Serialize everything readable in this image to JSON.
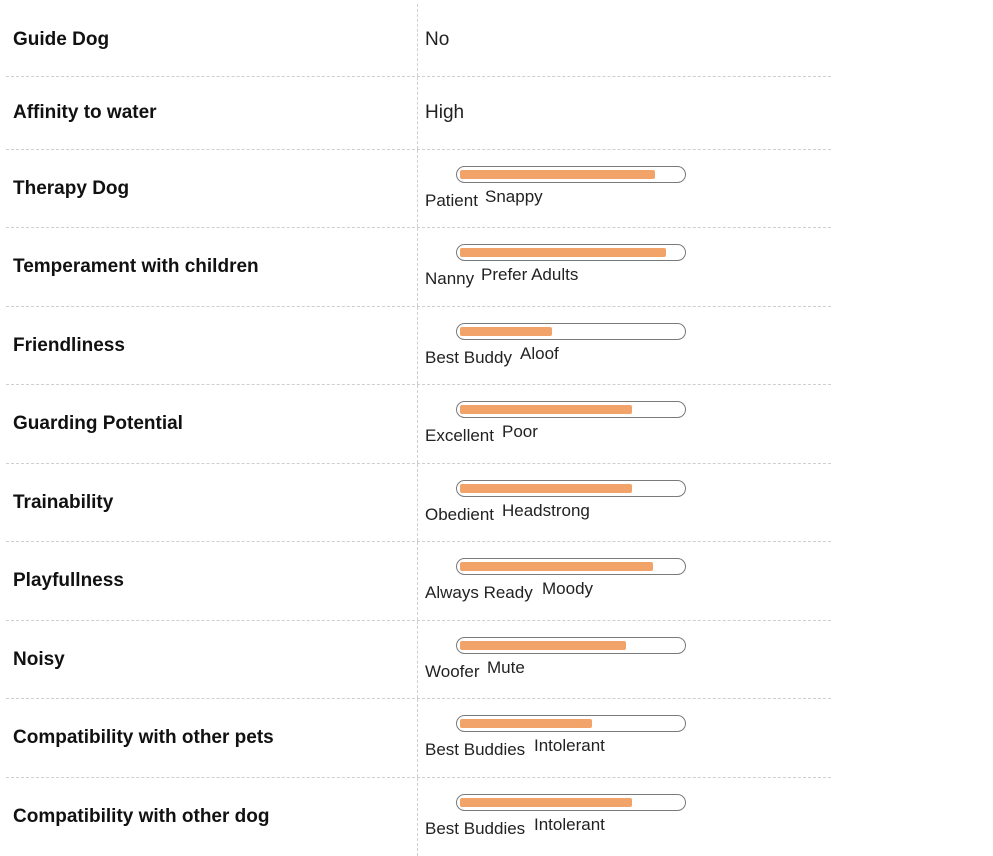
{
  "traits": [
    {
      "label": "Guide Dog",
      "value": "No"
    },
    {
      "label": "Affinity to water",
      "value": "High"
    },
    {
      "label": "Therapy Dog",
      "low": "Patient",
      "high": "Snappy",
      "level": 0.87
    },
    {
      "label": "Temperament with children",
      "low": "Nanny",
      "high": "Prefer Adults",
      "level": 0.92
    },
    {
      "label": "Friendliness",
      "low": "Best Buddy",
      "high": "Aloof",
      "level": 0.41
    },
    {
      "label": "Guarding Potential",
      "low": "Excellent",
      "high": "Poor",
      "level": 0.77
    },
    {
      "label": "Trainability",
      "low": "Obedient",
      "high": "Headstrong",
      "level": 0.77
    },
    {
      "label": "Playfullness",
      "low": "Always Ready",
      "high": "Moody",
      "level": 0.86
    },
    {
      "label": "Noisy",
      "low": "Woofer",
      "high": "Mute",
      "level": 0.74
    },
    {
      "label": "Compatibility with other pets",
      "low": "Best Buddies",
      "high": "Intolerant",
      "level": 0.59
    },
    {
      "label": "Compatibility with other dog",
      "low": "Best Buddies",
      "high": "Intolerant",
      "level": 0.77
    }
  ],
  "colors": {
    "bar_fill": "#f2a36a",
    "bar_border": "#7a7a7a",
    "divider": "#cfcfcf"
  }
}
